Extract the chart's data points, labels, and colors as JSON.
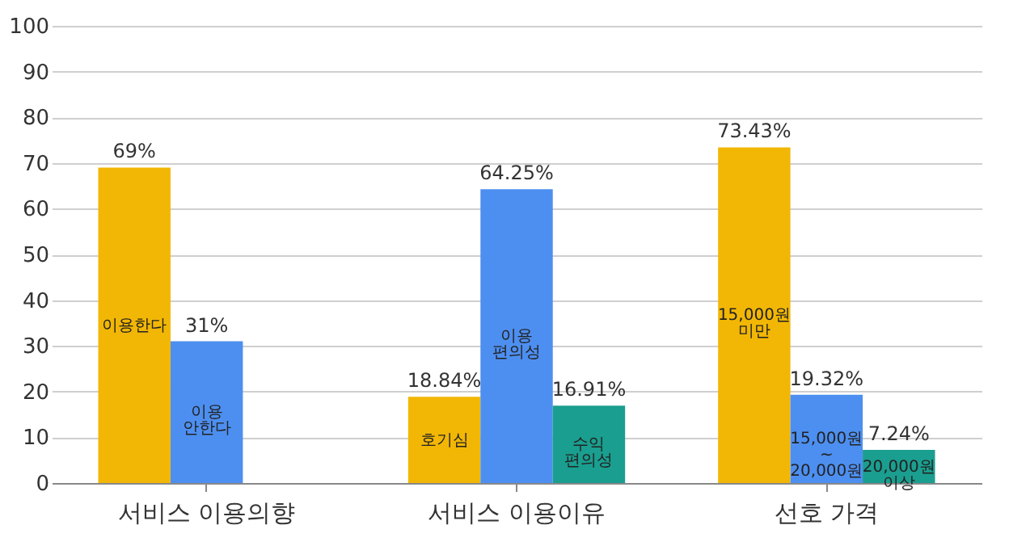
{
  "chart_data": {
    "type": "bar",
    "categories": [
      "서비스 이용의향",
      "서비스 이용이유",
      "선호 가격"
    ],
    "series": [
      {
        "color": "#f2b705",
        "values": [
          69,
          18.84,
          73.43
        ],
        "value_labels": [
          "69%",
          "18.84%",
          "73.43%"
        ]
      },
      {
        "color": "#4d8ff0",
        "values": [
          31,
          64.25,
          19.32
        ],
        "value_labels": [
          "31%",
          "64.25%",
          "19.32%"
        ]
      },
      {
        "color": "#1a9e8f",
        "values": [
          null,
          16.91,
          7.24
        ],
        "value_labels": [
          null,
          "16.91%",
          "7.24%"
        ]
      }
    ],
    "ylim": [
      0,
      100
    ],
    "yticks": [
      0,
      10,
      20,
      30,
      40,
      50,
      60,
      70,
      80,
      90,
      100
    ],
    "grid": "y",
    "annotations": [
      "이용한다",
      "이용\n안한다",
      "호기심",
      "이용\n편의성",
      "수익\n편의성",
      "15,000원\n미만",
      "15,000원\n~\n20,000원",
      "20,000원\n이상"
    ]
  }
}
